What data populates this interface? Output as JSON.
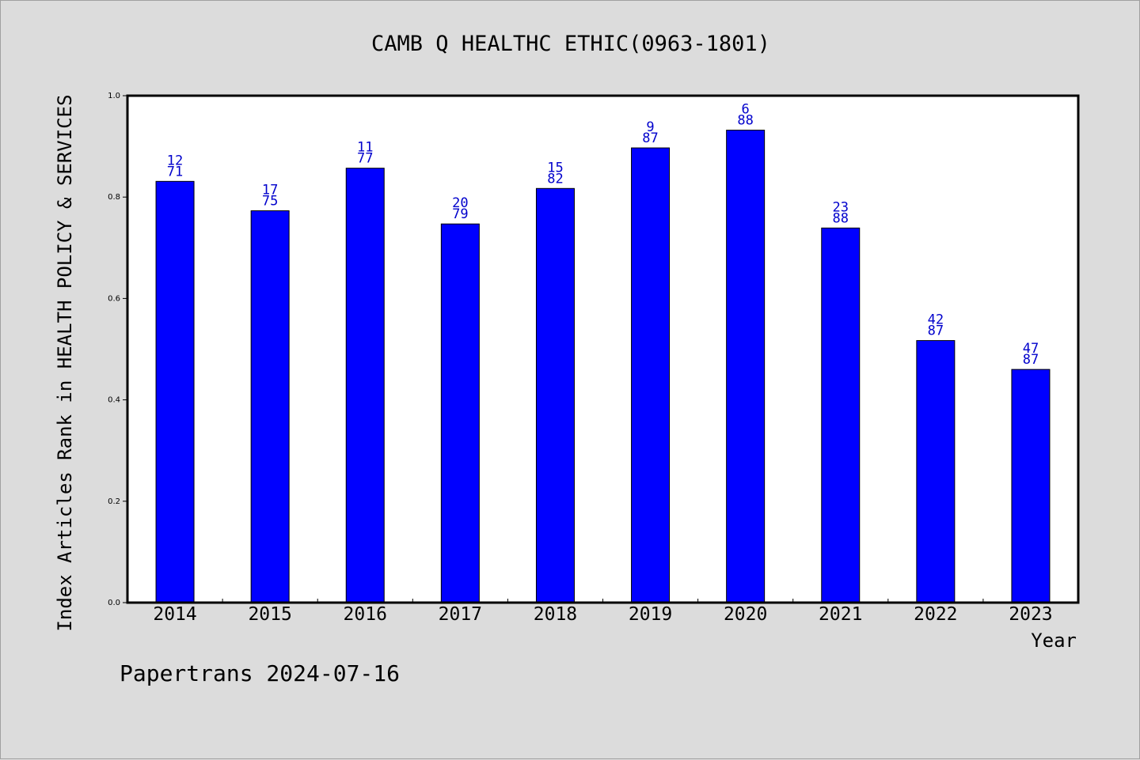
{
  "chart_data": {
    "type": "bar",
    "title": "CAMB Q HEALTHC ETHIC(0963-1801)",
    "xlabel": "Year",
    "ylabel": "Index Articles Rank in HEALTH POLICY & SERVICES",
    "ylim": [
      0,
      1.0
    ],
    "yticks": [
      "0.0",
      "0.2",
      "0.4",
      "0.6",
      "0.8",
      "1.0"
    ],
    "categories": [
      "2014",
      "2015",
      "2016",
      "2017",
      "2018",
      "2019",
      "2020",
      "2021",
      "2022",
      "2023"
    ],
    "values": [
      0.831,
      0.773,
      0.857,
      0.747,
      0.817,
      0.897,
      0.932,
      0.739,
      0.517,
      0.46
    ],
    "rank_labels": [
      "12",
      "17",
      "11",
      "20",
      "15",
      "9",
      "6",
      "23",
      "42",
      "47"
    ],
    "total_labels": [
      "71",
      "75",
      "77",
      "79",
      "82",
      "87",
      "88",
      "88",
      "87",
      "87"
    ],
    "grid": false,
    "bar_color": "#0000ff",
    "label_color": "#0000cc"
  },
  "footer": {
    "text": "Papertrans 2024-07-16"
  }
}
